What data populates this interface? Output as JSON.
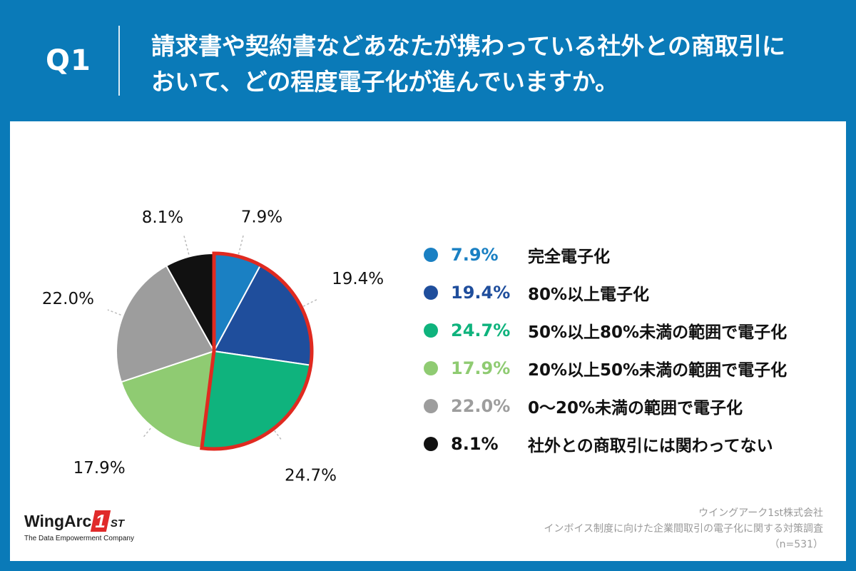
{
  "header": {
    "q_label": "Q1",
    "question_line1": "請求書や契約書などあなたが携わっている社外との商取引に",
    "question_line2": "おいて、どの程度電子化が進んでいますか。"
  },
  "chart_data": {
    "type": "pie",
    "title": "請求書や契約書などあなたが携わっている社外との商取引において、どの程度電子化が進んでいますか。",
    "start": "12 o'clock, clockwise",
    "slices": [
      {
        "label": "完全電子化",
        "value": 7.9,
        "display": "7.9%",
        "color": "#1a80c3"
      },
      {
        "label": "80%以上電子化",
        "value": 19.4,
        "display": "19.4%",
        "color": "#1f4e9c"
      },
      {
        "label": "50%以上80%未満の範囲で電子化",
        "value": 24.7,
        "display": "24.7%",
        "color": "#0fb37d"
      },
      {
        "label": "20%以上50%未満の範囲で電子化",
        "value": 17.9,
        "display": "17.9%",
        "color": "#8fcb72"
      },
      {
        "label": "0〜20%未満の範囲で電子化",
        "value": 22.0,
        "display": "22.0%",
        "color": "#9d9d9d"
      },
      {
        "label": "社外との商取引には関わってない",
        "value": 8.1,
        "display": "8.1%",
        "color": "#111111"
      }
    ],
    "highlight": {
      "slices": [
        0,
        1,
        2
      ],
      "color": "#e02a20"
    }
  },
  "logo": {
    "name": "WingArc",
    "mark": "1",
    "suffix": "ST",
    "tagline": "The Data Empowerment Company"
  },
  "source": {
    "company": "ウイングアーク1st株式会社",
    "survey": "インボイス制度に向けた企業間取引の電子化に関する対策調査",
    "n": "（n=531）"
  }
}
